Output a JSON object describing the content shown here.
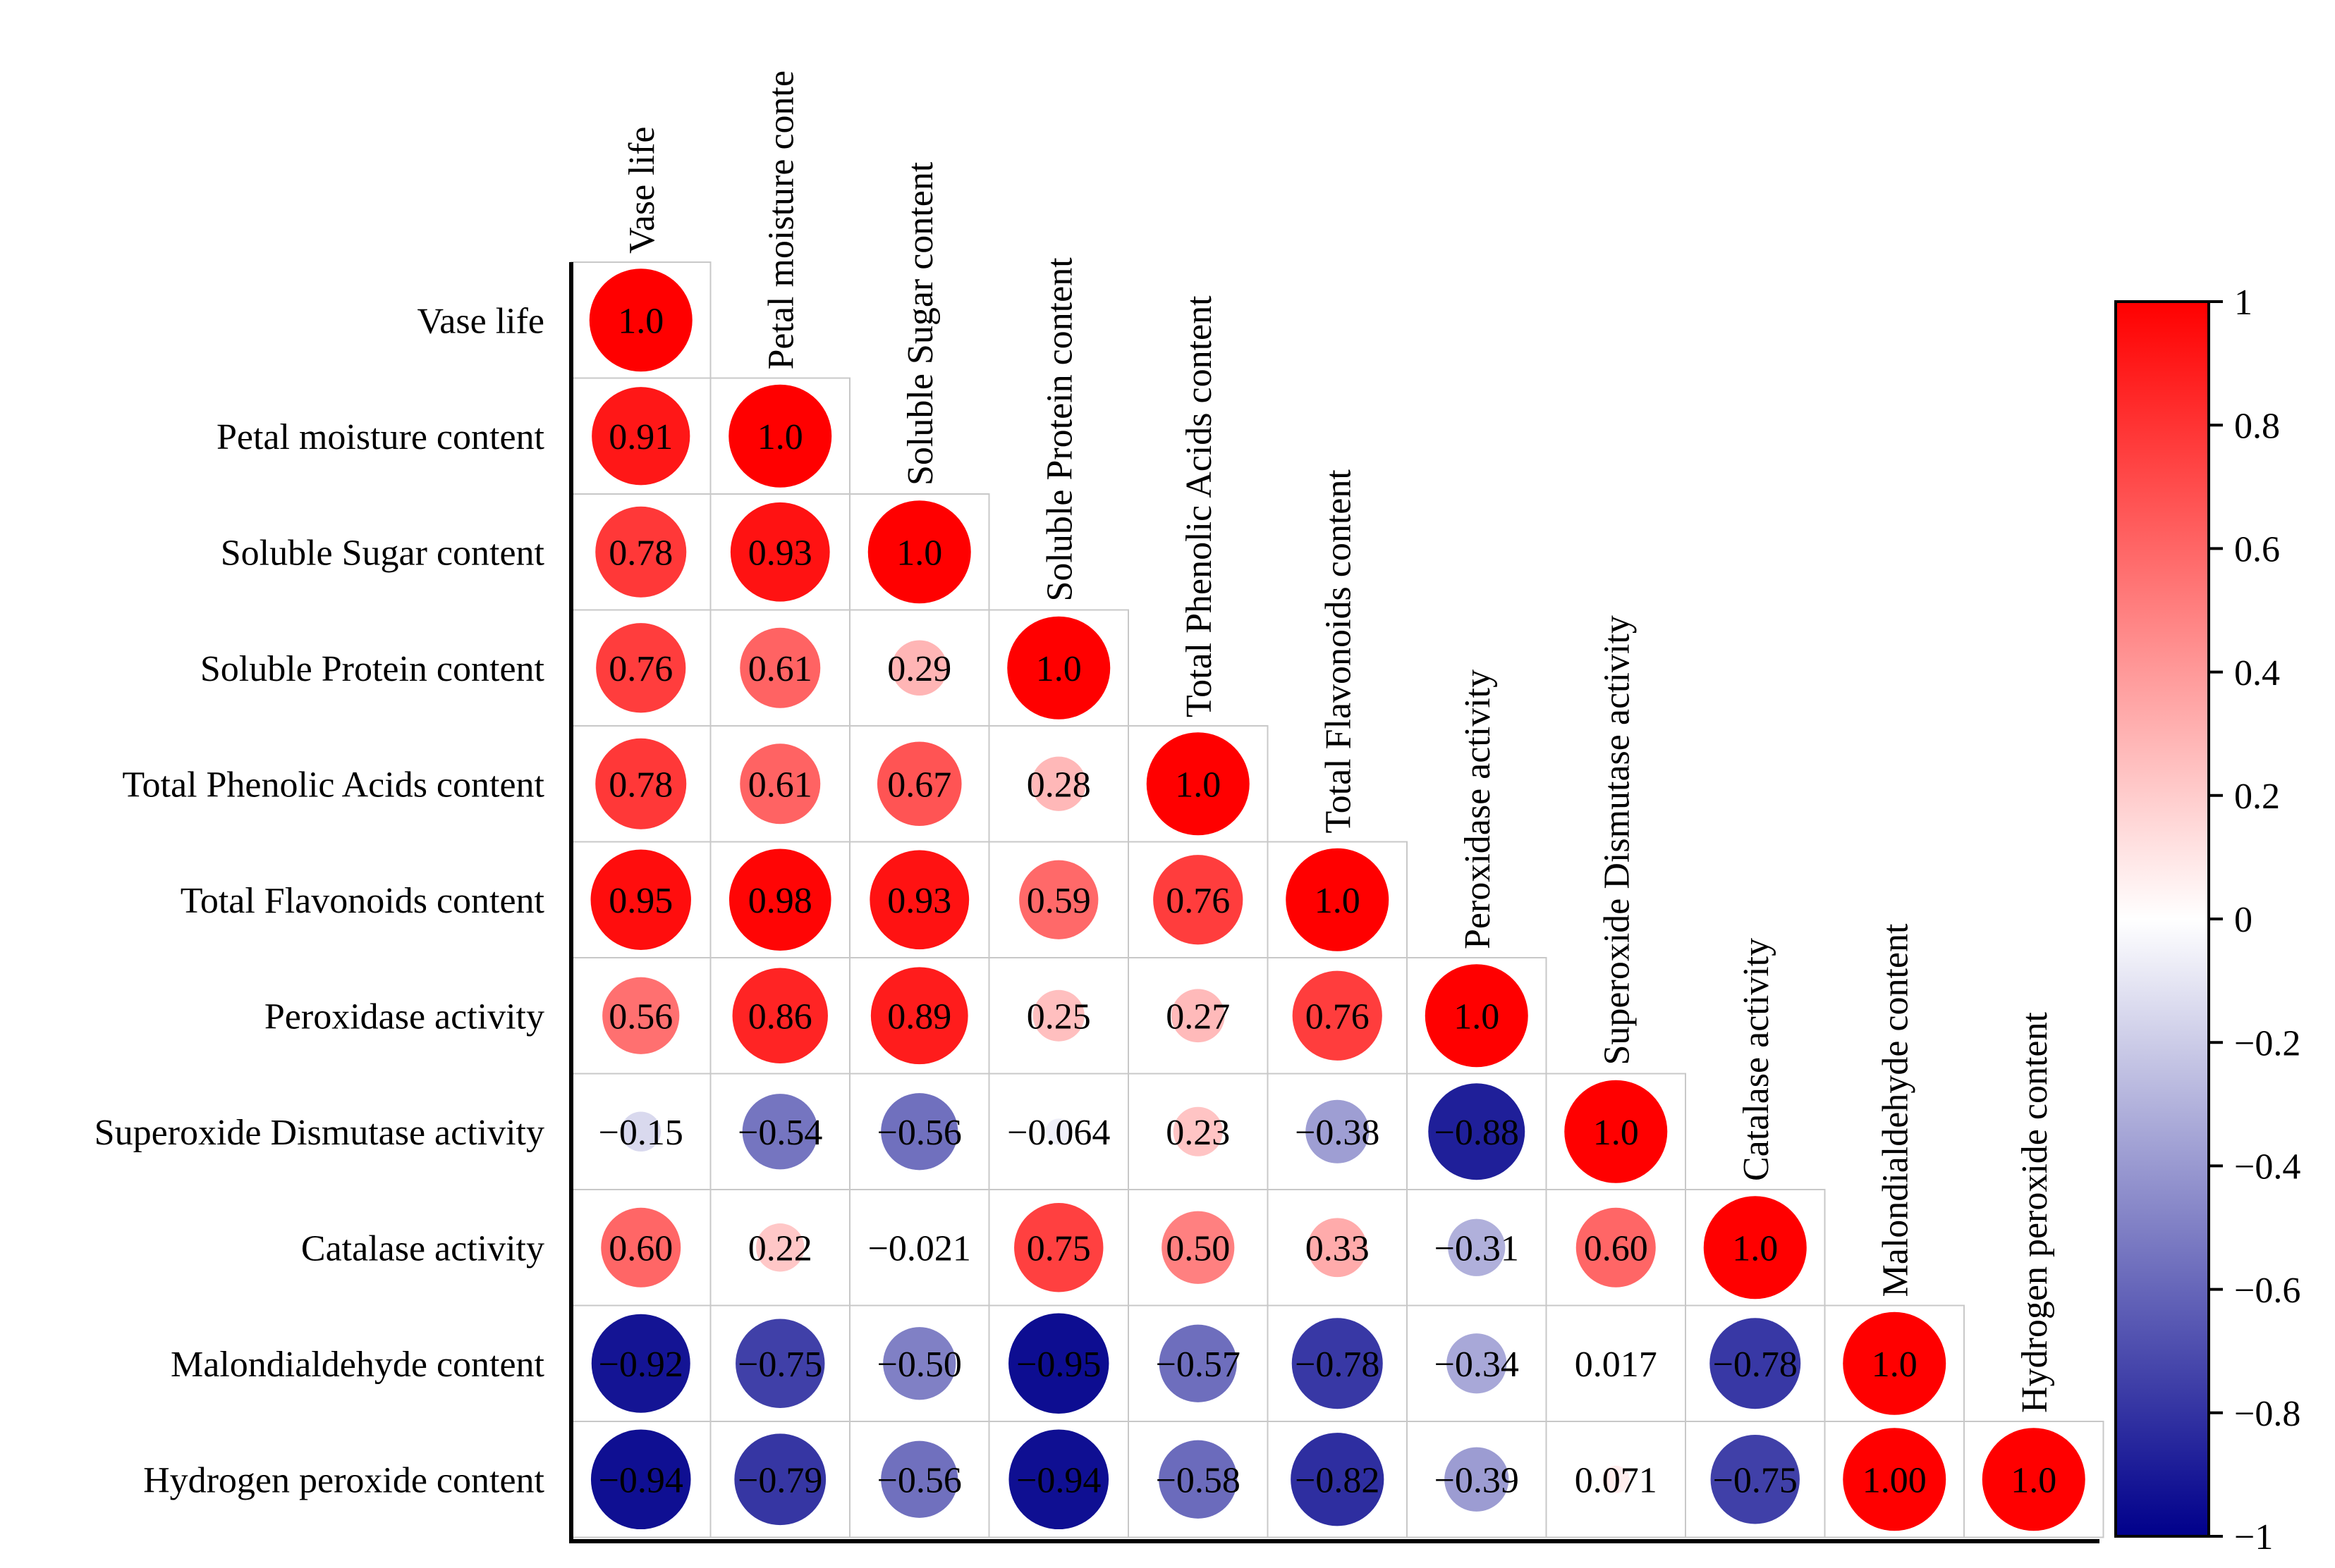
{
  "chart_data": {
    "type": "heatmap",
    "subtype": "lower-triangular correlation matrix with circle markers",
    "variables": [
      "Vase life",
      "Petal moisture content",
      "Soluble Sugar content",
      "Soluble Protein content",
      "Total Phenolic Acids content",
      "Total Flavonoids content",
      "Peroxidase activity",
      "Superoxide Dismutase activity",
      "Catalase activity",
      "Malondialdehyde content",
      "Hydrogen peroxide content"
    ],
    "column_labels": [
      "Vase life",
      "Petal moisture conte",
      "Soluble Sugar content",
      "Soluble Protein content",
      "Total Phenolic Acids content",
      "Total Flavonoids content",
      "Peroxidase activity",
      "Superoxide Dismutase activity",
      "Catalase activity",
      "Malondialdehyde content",
      "Hydrogen peroxide content"
    ],
    "matrix_labels": [
      [
        "1.0"
      ],
      [
        "0.91",
        "1.0"
      ],
      [
        "0.78",
        "0.93",
        "1.0"
      ],
      [
        "0.76",
        "0.61",
        "0.29",
        "1.0"
      ],
      [
        "0.78",
        "0.61",
        "0.67",
        "0.28",
        "1.0"
      ],
      [
        "0.95",
        "0.98",
        "0.93",
        "0.59",
        "0.76",
        "1.0"
      ],
      [
        "0.56",
        "0.86",
        "0.89",
        "0.25",
        "0.27",
        "0.76",
        "1.0"
      ],
      [
        "−0.15",
        "−0.54",
        "−0.56",
        "−0.064",
        "0.23",
        "−0.38",
        "−0.88",
        "1.0"
      ],
      [
        "0.60",
        "0.22",
        "−0.021",
        "0.75",
        "0.50",
        "0.33",
        "−0.31",
        "0.60",
        "1.0"
      ],
      [
        "−0.92",
        "−0.75",
        "−0.50",
        "−0.95",
        "−0.57",
        "−0.78",
        "−0.34",
        "0.017",
        "−0.78",
        "1.0"
      ],
      [
        "−0.94",
        "−0.79",
        "−0.56",
        "−0.94",
        "−0.58",
        "−0.82",
        "−0.39",
        "0.071",
        "−0.75",
        "1.00",
        "1.0"
      ]
    ],
    "colorbar": {
      "range": [
        -1,
        1
      ],
      "ticks": [
        "1",
        "0.8",
        "0.6",
        "0.4",
        "0.2",
        "0",
        "−0.2",
        "−0.4",
        "−0.6",
        "−0.8",
        "−1"
      ],
      "tick_values": [
        1,
        0.8,
        0.6,
        0.4,
        0.2,
        0,
        -0.2,
        -0.4,
        -0.6,
        -0.8,
        -1
      ],
      "colors": {
        "positive": "#ff0000",
        "zero": "#ffffff",
        "negative": "#00008b"
      }
    },
    "legend": "right"
  }
}
